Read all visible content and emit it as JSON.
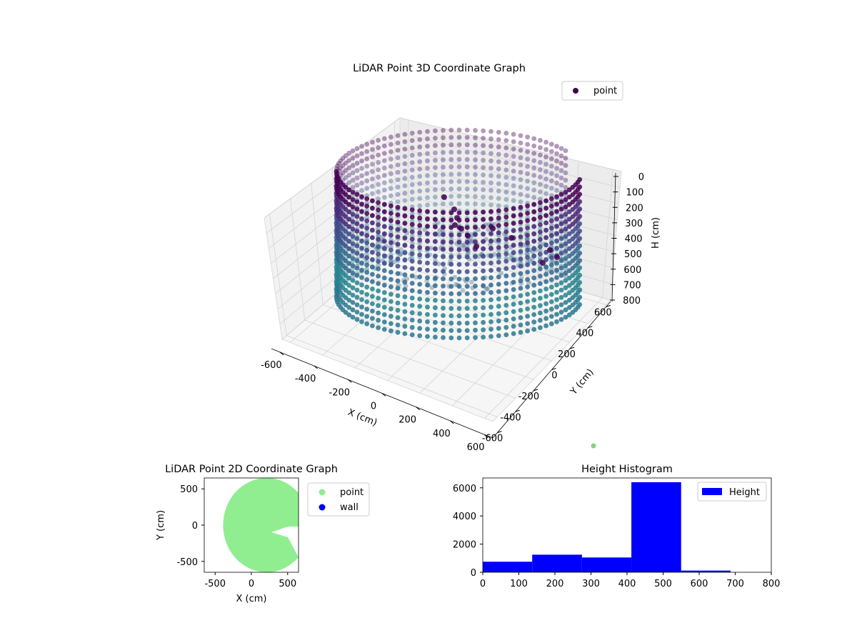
{
  "colors": {
    "point_green": "#90ee90",
    "wall_blue": "#0000ff",
    "hist_blue": "#0000ff",
    "point_dark": "#440154",
    "point_teal": "#2a788e"
  },
  "chart_data": [
    {
      "type": "scatter",
      "kind": "3d",
      "title": "LiDAR Point 3D Coordinate Graph",
      "xlabel": "X (cm)",
      "ylabel": "Y (cm)",
      "zlabel": "H (cm)",
      "xticks": [
        "-600",
        "-400",
        "-200",
        "0",
        "200",
        "400",
        "600"
      ],
      "yticks": [
        "-600",
        "-400",
        "-200",
        "0",
        "200",
        "400",
        "600"
      ],
      "zticks": [
        "0",
        "100",
        "200",
        "300",
        "400",
        "500",
        "600",
        "700",
        "800"
      ],
      "xlim": [
        -650,
        650
      ],
      "ylim": [
        -650,
        650
      ],
      "zlim": [
        0,
        800
      ],
      "z_inverted": true,
      "legend": [
        "point"
      ],
      "legend_position": "upper-right",
      "description": "cylindrical wall of points radius ~600 cm, height 0-800 cm, open sector on +X side"
    },
    {
      "type": "scatter",
      "title": "LiDAR Point 2D Coordinate Graph",
      "xlabel": "X (cm)",
      "ylabel": "Y (cm)",
      "xticks": [
        "-500",
        "0",
        "500"
      ],
      "yticks": [
        "500",
        "0",
        "-500"
      ],
      "xlim": [
        -650,
        650
      ],
      "ylim": [
        -650,
        650
      ],
      "series": [
        {
          "name": "point",
          "color": "#90ee90"
        },
        {
          "name": "wall",
          "color": "#0000ff"
        }
      ],
      "legend_position": "outside-right"
    },
    {
      "type": "bar",
      "title": "Height Histogram",
      "xticks": [
        "0",
        "100",
        "200",
        "300",
        "400",
        "500",
        "600",
        "700",
        "800"
      ],
      "yticks": [
        "0",
        "2000",
        "4000",
        "6000"
      ],
      "xlim": [
        0,
        800
      ],
      "ylim": [
        0,
        6700
      ],
      "bins": [
        {
          "x0": 0,
          "x1": 137,
          "count": 750
        },
        {
          "x0": 137,
          "x1": 275,
          "count": 1250
        },
        {
          "x0": 275,
          "x1": 412,
          "count": 1050
        },
        {
          "x0": 412,
          "x1": 550,
          "count": 6400
        },
        {
          "x0": 550,
          "x1": 687,
          "count": 120
        }
      ],
      "series": [
        {
          "name": "Height",
          "color": "#0000ff"
        }
      ],
      "legend_position": "upper-right"
    }
  ]
}
